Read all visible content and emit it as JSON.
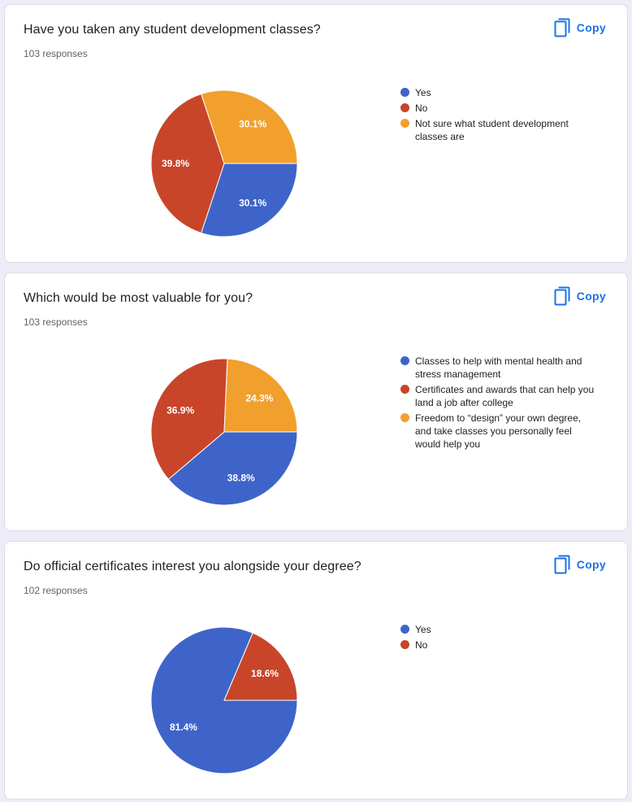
{
  "copy_label": "Copy",
  "colors": {
    "blue": "#3e64c9",
    "red": "#c8452a",
    "orange": "#f1a02e"
  },
  "chart_data": [
    {
      "type": "pie",
      "title": "Have you taken any student development classes?",
      "responses": "103 responses",
      "labels": [
        "Yes",
        "No",
        "Not sure what student development classes are"
      ],
      "values": [
        30.1,
        39.8,
        30.1
      ],
      "value_labels": [
        "30.1%",
        "39.8%",
        "30.1%"
      ],
      "colors": [
        "#3e64c9",
        "#c8452a",
        "#f1a02e"
      ],
      "legend": "right"
    },
    {
      "type": "pie",
      "title": "Which would be most valuable for you?",
      "responses": "103 responses",
      "labels": [
        "Classes to help with mental health and stress management",
        "Certificates and awards that can help you land a job after college",
        "Freedom to “design” your own degree, and take classes you personally feel would help you"
      ],
      "values": [
        38.8,
        36.9,
        24.3
      ],
      "value_labels": [
        "38.8%",
        "36.9%",
        "24.3%"
      ],
      "colors": [
        "#3e64c9",
        "#c8452a",
        "#f1a02e"
      ],
      "legend": "right"
    },
    {
      "type": "pie",
      "title": "Do official certificates interest you alongside your degree?",
      "responses": "102 responses",
      "labels": [
        "Yes",
        "No"
      ],
      "values": [
        81.4,
        18.6
      ],
      "value_labels": [
        "81.4%",
        "18.6%"
      ],
      "colors": [
        "#3e64c9",
        "#c8452a"
      ],
      "legend": "right"
    }
  ]
}
